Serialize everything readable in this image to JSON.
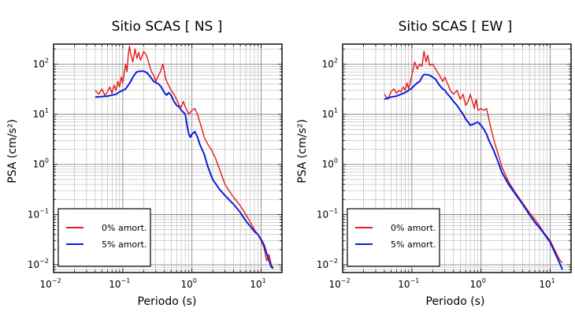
{
  "chart_data": [
    {
      "type": "line",
      "title": "Sitio SCAS [ NS ]",
      "xlabel": "Periodo (s)",
      "ylabel": "PSA (cm/s²)",
      "xscale": "log",
      "yscale": "log",
      "xlim": [
        0.01,
        20
      ],
      "ylim": [
        0.007,
        250
      ],
      "x_ticks": [
        {
          "base": "10",
          "exp": "−2"
        },
        {
          "base": "10",
          "exp": "−1"
        },
        {
          "base": "10",
          "exp": "0"
        },
        {
          "base": "10",
          "exp": "1"
        }
      ],
      "y_ticks": [
        {
          "base": "10",
          "exp": "−2"
        },
        {
          "base": "10",
          "exp": "−1"
        },
        {
          "base": "10",
          "exp": "0"
        },
        {
          "base": "10",
          "exp": "1"
        },
        {
          "base": "10",
          "exp": "2"
        }
      ],
      "grid": true,
      "legend": "bottom-left",
      "series": [
        {
          "name": "0% amort.",
          "color": "#e41a1c",
          "points": [
            [
              0.04,
              30
            ],
            [
              0.045,
              25
            ],
            [
              0.05,
              32
            ],
            [
              0.055,
              24
            ],
            [
              0.06,
              28
            ],
            [
              0.065,
              35
            ],
            [
              0.07,
              26
            ],
            [
              0.075,
              38
            ],
            [
              0.08,
              30
            ],
            [
              0.085,
              45
            ],
            [
              0.09,
              35
            ],
            [
              0.095,
              55
            ],
            [
              0.1,
              42
            ],
            [
              0.105,
              65
            ],
            [
              0.11,
              100
            ],
            [
              0.115,
              70
            ],
            [
              0.12,
              150
            ],
            [
              0.125,
              230
            ],
            [
              0.13,
              160
            ],
            [
              0.14,
              110
            ],
            [
              0.15,
              200
            ],
            [
              0.16,
              130
            ],
            [
              0.17,
              170
            ],
            [
              0.18,
              120
            ],
            [
              0.19,
              140
            ],
            [
              0.2,
              180
            ],
            [
              0.22,
              150
            ],
            [
              0.24,
              100
            ],
            [
              0.26,
              70
            ],
            [
              0.28,
              60
            ],
            [
              0.3,
              45
            ],
            [
              0.32,
              55
            ],
            [
              0.35,
              70
            ],
            [
              0.38,
              100
            ],
            [
              0.4,
              70
            ],
            [
              0.42,
              50
            ],
            [
              0.45,
              40
            ],
            [
              0.5,
              30
            ],
            [
              0.55,
              25
            ],
            [
              0.6,
              20
            ],
            [
              0.65,
              15
            ],
            [
              0.7,
              14
            ],
            [
              0.75,
              18
            ],
            [
              0.8,
              14
            ],
            [
              0.9,
              10
            ],
            [
              1.0,
              12
            ],
            [
              1.1,
              13
            ],
            [
              1.2,
              10
            ],
            [
              1.3,
              7
            ],
            [
              1.4,
              5
            ],
            [
              1.5,
              3.5
            ],
            [
              1.7,
              2.5
            ],
            [
              1.9,
              2
            ],
            [
              2.2,
              1.3
            ],
            [
              2.5,
              0.8
            ],
            [
              3,
              0.4
            ],
            [
              4,
              0.22
            ],
            [
              5,
              0.15
            ],
            [
              6,
              0.1
            ],
            [
              7,
              0.07
            ],
            [
              8,
              0.05
            ],
            [
              9,
              0.04
            ],
            [
              10,
              0.03
            ],
            [
              11,
              0.022
            ],
            [
              12,
              0.012
            ],
            [
              13,
              0.016
            ],
            [
              14,
              0.01
            ],
            [
              15,
              0.0085
            ]
          ]
        },
        {
          "name": "5% amort.",
          "color": "#0a1edc",
          "points": [
            [
              0.04,
              22
            ],
            [
              0.05,
              22.5
            ],
            [
              0.06,
              23
            ],
            [
              0.07,
              24
            ],
            [
              0.08,
              25
            ],
            [
              0.09,
              28
            ],
            [
              0.1,
              30
            ],
            [
              0.11,
              32
            ],
            [
              0.12,
              38
            ],
            [
              0.13,
              45
            ],
            [
              0.14,
              55
            ],
            [
              0.15,
              63
            ],
            [
              0.16,
              70
            ],
            [
              0.18,
              72
            ],
            [
              0.2,
              72
            ],
            [
              0.22,
              68
            ],
            [
              0.24,
              60
            ],
            [
              0.26,
              52
            ],
            [
              0.28,
              45
            ],
            [
              0.3,
              43
            ],
            [
              0.33,
              40
            ],
            [
              0.36,
              35
            ],
            [
              0.4,
              27
            ],
            [
              0.43,
              24
            ],
            [
              0.46,
              27
            ],
            [
              0.5,
              24
            ],
            [
              0.55,
              18
            ],
            [
              0.6,
              15
            ],
            [
              0.65,
              14
            ],
            [
              0.7,
              12
            ],
            [
              0.75,
              11
            ],
            [
              0.8,
              10
            ],
            [
              0.85,
              6
            ],
            [
              0.9,
              4
            ],
            [
              0.95,
              3.5
            ],
            [
              1.0,
              4
            ],
            [
              1.1,
              4.5
            ],
            [
              1.2,
              3.5
            ],
            [
              1.3,
              2.5
            ],
            [
              1.4,
              2
            ],
            [
              1.5,
              1.6
            ],
            [
              1.7,
              0.9
            ],
            [
              2,
              0.5
            ],
            [
              2.5,
              0.32
            ],
            [
              3,
              0.24
            ],
            [
              4,
              0.16
            ],
            [
              5,
              0.11
            ],
            [
              6,
              0.075
            ],
            [
              7,
              0.058
            ],
            [
              8,
              0.046
            ],
            [
              9,
              0.04
            ],
            [
              10,
              0.032
            ],
            [
              11,
              0.025
            ],
            [
              12,
              0.017
            ],
            [
              13,
              0.012
            ],
            [
              14,
              0.009
            ],
            [
              15,
              0.0085
            ]
          ]
        }
      ]
    },
    {
      "type": "line",
      "title": "Sitio SCAS [ EW ]",
      "xlabel": "Periodo (s)",
      "ylabel": "PSA (cm/s²)",
      "xscale": "log",
      "yscale": "log",
      "xlim": [
        0.01,
        20
      ],
      "ylim": [
        0.007,
        250
      ],
      "x_ticks": [
        {
          "base": "10",
          "exp": "−2"
        },
        {
          "base": "10",
          "exp": "−1"
        },
        {
          "base": "10",
          "exp": "0"
        },
        {
          "base": "10",
          "exp": "1"
        }
      ],
      "y_ticks": [
        {
          "base": "10",
          "exp": "−2"
        },
        {
          "base": "10",
          "exp": "−1"
        },
        {
          "base": "10",
          "exp": "0"
        },
        {
          "base": "10",
          "exp": "1"
        },
        {
          "base": "10",
          "exp": "2"
        }
      ],
      "grid": true,
      "legend": "bottom-left",
      "series": [
        {
          "name": "0% amort.",
          "color": "#e41a1c",
          "points": [
            [
              0.04,
              25
            ],
            [
              0.045,
              20
            ],
            [
              0.05,
              28
            ],
            [
              0.055,
              32
            ],
            [
              0.06,
              26
            ],
            [
              0.065,
              30
            ],
            [
              0.07,
              28
            ],
            [
              0.075,
              35
            ],
            [
              0.08,
              30
            ],
            [
              0.085,
              42
            ],
            [
              0.09,
              32
            ],
            [
              0.1,
              60
            ],
            [
              0.11,
              110
            ],
            [
              0.12,
              80
            ],
            [
              0.13,
              100
            ],
            [
              0.14,
              90
            ],
            [
              0.15,
              180
            ],
            [
              0.16,
              110
            ],
            [
              0.17,
              150
            ],
            [
              0.18,
              95
            ],
            [
              0.2,
              100
            ],
            [
              0.22,
              80
            ],
            [
              0.25,
              60
            ],
            [
              0.28,
              45
            ],
            [
              0.3,
              55
            ],
            [
              0.33,
              40
            ],
            [
              0.36,
              30
            ],
            [
              0.4,
              25
            ],
            [
              0.45,
              30
            ],
            [
              0.5,
              20
            ],
            [
              0.55,
              25
            ],
            [
              0.6,
              15
            ],
            [
              0.65,
              18
            ],
            [
              0.7,
              25
            ],
            [
              0.75,
              18
            ],
            [
              0.8,
              13
            ],
            [
              0.85,
              20
            ],
            [
              0.9,
              12
            ],
            [
              1.0,
              13
            ],
            [
              1.1,
              12
            ],
            [
              1.2,
              13
            ],
            [
              1.3,
              8
            ],
            [
              1.4,
              5
            ],
            [
              1.6,
              2.5
            ],
            [
              1.8,
              1.5
            ],
            [
              2,
              0.9
            ],
            [
              2.5,
              0.45
            ],
            [
              3,
              0.3
            ],
            [
              4,
              0.17
            ],
            [
              5,
              0.11
            ],
            [
              6,
              0.08
            ],
            [
              7,
              0.06
            ],
            [
              8,
              0.045
            ],
            [
              10,
              0.03
            ],
            [
              12,
              0.018
            ],
            [
              14,
              0.012
            ],
            [
              15,
              0.011
            ]
          ]
        },
        {
          "name": "5% amort.",
          "color": "#0a1edc",
          "points": [
            [
              0.04,
              20
            ],
            [
              0.05,
              22
            ],
            [
              0.06,
              23
            ],
            [
              0.07,
              25
            ],
            [
              0.08,
              27
            ],
            [
              0.09,
              30
            ],
            [
              0.1,
              33
            ],
            [
              0.11,
              38
            ],
            [
              0.12,
              42
            ],
            [
              0.13,
              45
            ],
            [
              0.14,
              55
            ],
            [
              0.15,
              62
            ],
            [
              0.16,
              62
            ],
            [
              0.18,
              60
            ],
            [
              0.2,
              55
            ],
            [
              0.22,
              50
            ],
            [
              0.25,
              38
            ],
            [
              0.28,
              32
            ],
            [
              0.3,
              30
            ],
            [
              0.33,
              25
            ],
            [
              0.36,
              22
            ],
            [
              0.4,
              18
            ],
            [
              0.45,
              15
            ],
            [
              0.5,
              12
            ],
            [
              0.55,
              10
            ],
            [
              0.6,
              8
            ],
            [
              0.65,
              7
            ],
            [
              0.7,
              6
            ],
            [
              0.8,
              6.5
            ],
            [
              0.9,
              7
            ],
            [
              1.0,
              6
            ],
            [
              1.1,
              5
            ],
            [
              1.2,
              4
            ],
            [
              1.3,
              3
            ],
            [
              1.5,
              2
            ],
            [
              1.7,
              1.3
            ],
            [
              2,
              0.7
            ],
            [
              2.5,
              0.4
            ],
            [
              3,
              0.28
            ],
            [
              4,
              0.16
            ],
            [
              5,
              0.1
            ],
            [
              6,
              0.07
            ],
            [
              7,
              0.055
            ],
            [
              8,
              0.043
            ],
            [
              10,
              0.028
            ],
            [
              12,
              0.016
            ],
            [
              14,
              0.01
            ],
            [
              15,
              0.008
            ]
          ]
        }
      ]
    }
  ]
}
